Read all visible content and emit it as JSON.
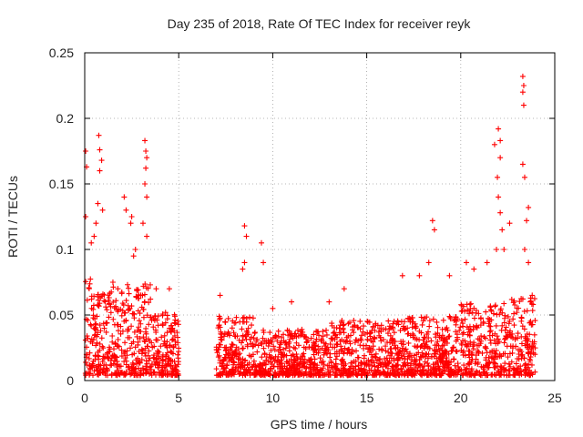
{
  "chart_data": {
    "type": "scatter",
    "title": "Day 235 of 2018, Rate Of TEC Index for receiver reyk",
    "xlabel": "GPS time / hours",
    "ylabel": "ROTI / TECUs",
    "xlim": [
      0,
      25
    ],
    "ylim": [
      0,
      0.25
    ],
    "xticks": [
      "0",
      "5",
      "10",
      "15",
      "20",
      "25"
    ],
    "yticks": [
      "0",
      "0.05",
      "0.1",
      "0.15",
      "0.2",
      "0.25"
    ],
    "grid": true,
    "marker": "plus",
    "color": "#ff0000",
    "data_gap": [
      5.0,
      7.0
    ],
    "peaks": [
      [
        0.05,
        0.175
      ],
      [
        0.1,
        0.163
      ],
      [
        0.05,
        0.125
      ],
      [
        0.35,
        0.105
      ],
      [
        0.5,
        0.11
      ],
      [
        0.75,
        0.187
      ],
      [
        0.8,
        0.176
      ],
      [
        0.8,
        0.16
      ],
      [
        0.9,
        0.168
      ],
      [
        0.95,
        0.13
      ],
      [
        0.7,
        0.135
      ],
      [
        0.6,
        0.12
      ],
      [
        1.5,
        0.075
      ],
      [
        2.1,
        0.14
      ],
      [
        2.2,
        0.13
      ],
      [
        2.45,
        0.12
      ],
      [
        2.5,
        0.125
      ],
      [
        2.6,
        0.095
      ],
      [
        2.7,
        0.1
      ],
      [
        3.2,
        0.183
      ],
      [
        3.25,
        0.175
      ],
      [
        3.3,
        0.17
      ],
      [
        3.25,
        0.162
      ],
      [
        3.2,
        0.15
      ],
      [
        3.3,
        0.14
      ],
      [
        3.1,
        0.12
      ],
      [
        3.3,
        0.11
      ],
      [
        3.8,
        0.07
      ],
      [
        4.5,
        0.07
      ],
      [
        7.2,
        0.065
      ],
      [
        8.5,
        0.118
      ],
      [
        8.6,
        0.11
      ],
      [
        8.5,
        0.09
      ],
      [
        8.4,
        0.085
      ],
      [
        9.4,
        0.105
      ],
      [
        9.5,
        0.09
      ],
      [
        10.0,
        0.055
      ],
      [
        11.0,
        0.06
      ],
      [
        13.0,
        0.06
      ],
      [
        13.8,
        0.07
      ],
      [
        16.9,
        0.08
      ],
      [
        17.8,
        0.08
      ],
      [
        18.5,
        0.122
      ],
      [
        18.6,
        0.115
      ],
      [
        18.3,
        0.09
      ],
      [
        19.4,
        0.08
      ],
      [
        20.3,
        0.09
      ],
      [
        20.7,
        0.085
      ],
      [
        21.4,
        0.09
      ],
      [
        21.8,
        0.18
      ],
      [
        22.0,
        0.192
      ],
      [
        22.1,
        0.183
      ],
      [
        22.1,
        0.17
      ],
      [
        21.95,
        0.155
      ],
      [
        22.0,
        0.14
      ],
      [
        22.1,
        0.128
      ],
      [
        22.2,
        0.115
      ],
      [
        21.9,
        0.1
      ],
      [
        22.3,
        0.1
      ],
      [
        22.6,
        0.12
      ],
      [
        23.3,
        0.232
      ],
      [
        23.35,
        0.225
      ],
      [
        23.3,
        0.22
      ],
      [
        23.35,
        0.21
      ],
      [
        23.3,
        0.165
      ],
      [
        23.4,
        0.155
      ],
      [
        23.6,
        0.132
      ],
      [
        23.5,
        0.122
      ],
      [
        23.4,
        0.1
      ],
      [
        23.6,
        0.09
      ],
      [
        23.8,
        0.065
      ],
      [
        23.7,
        0.06
      ]
    ]
  }
}
